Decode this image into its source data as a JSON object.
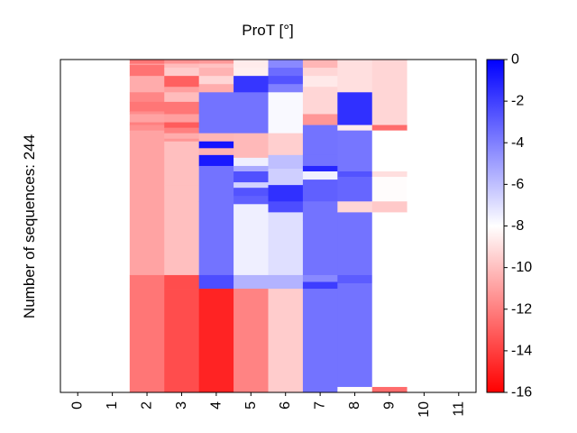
{
  "chart_data": {
    "type": "heatmap",
    "title": "ProT [°]",
    "ylabel": "Number of sequences: 244",
    "xlabel": "",
    "x_ticks": [
      "0",
      "1",
      "2",
      "3",
      "4",
      "5",
      "6",
      "7",
      "8",
      "9",
      "10",
      "11"
    ],
    "n_sequences": 244,
    "colorbar": {
      "min": -16,
      "max": 0,
      "ticks": [
        "0",
        "-2",
        "-4",
        "-6",
        "-8",
        "-10",
        "-12",
        "-14",
        "-16"
      ],
      "colormap": "bwr_r",
      "colors": {
        "low": "#ff0000",
        "mid": "#ffffff",
        "high": "#0000ff"
      }
    },
    "columns": [
      {
        "x": 2,
        "segments": [
          [
            0,
            3,
            -12.3
          ],
          [
            3,
            4,
            -11.2
          ],
          [
            4,
            12,
            -12.4
          ],
          [
            12,
            24,
            -10.6
          ],
          [
            24,
            31,
            -11.8
          ],
          [
            31,
            38,
            -12.3
          ],
          [
            38,
            40,
            -11.6
          ],
          [
            40,
            46,
            -10.9
          ],
          [
            46,
            48,
            -12.0
          ],
          [
            48,
            52,
            -11.5
          ],
          [
            52,
            54,
            -10.9
          ],
          [
            54,
            158,
            -10.9
          ],
          [
            158,
            168,
            -12.3
          ],
          [
            168,
            244,
            -12.3
          ]
        ]
      },
      {
        "x": 3,
        "segments": [
          [
            0,
            3,
            -11.4
          ],
          [
            3,
            6,
            -10.1
          ],
          [
            6,
            12,
            -9.6
          ],
          [
            12,
            20,
            -13.0
          ],
          [
            20,
            24,
            -11.0
          ],
          [
            24,
            31,
            -10.1
          ],
          [
            31,
            38,
            -12.3
          ],
          [
            38,
            40,
            -12.3
          ],
          [
            40,
            46,
            -11.0
          ],
          [
            46,
            50,
            -13.1
          ],
          [
            50,
            54,
            -12.0
          ],
          [
            54,
            58,
            -10.6
          ],
          [
            58,
            60,
            -11.3
          ],
          [
            60,
            92,
            -10.0
          ],
          [
            92,
            158,
            -10.0
          ],
          [
            158,
            168,
            -13.6
          ],
          [
            168,
            244,
            -13.6
          ]
        ]
      },
      {
        "x": 4,
        "segments": [
          [
            0,
            3,
            -11.2
          ],
          [
            3,
            6,
            -9.9
          ],
          [
            6,
            12,
            -10.4
          ],
          [
            12,
            18,
            -9.3
          ],
          [
            18,
            24,
            -10.6
          ],
          [
            24,
            54,
            -3.6
          ],
          [
            54,
            56,
            -10.3
          ],
          [
            56,
            60,
            -10.3
          ],
          [
            60,
            65,
            -0.6
          ],
          [
            65,
            70,
            -10.4
          ],
          [
            70,
            78,
            -0.8
          ],
          [
            78,
            104,
            -3.6
          ],
          [
            104,
            158,
            -3.6
          ],
          [
            158,
            168,
            -2.4
          ],
          [
            168,
            244,
            -14.9
          ]
        ]
      },
      {
        "x": 5,
        "segments": [
          [
            0,
            6,
            -8.6
          ],
          [
            6,
            12,
            -8.5
          ],
          [
            12,
            24,
            -1.7
          ],
          [
            24,
            54,
            -3.6
          ],
          [
            54,
            72,
            -10.2
          ],
          [
            72,
            78,
            -7.5
          ],
          [
            78,
            82,
            -5.3
          ],
          [
            82,
            90,
            -2.5
          ],
          [
            90,
            94,
            -6.6
          ],
          [
            94,
            100,
            -2.6
          ],
          [
            100,
            106,
            -3.0
          ],
          [
            106,
            158,
            -7.5
          ],
          [
            158,
            168,
            -5.6
          ],
          [
            168,
            244,
            -11.9
          ]
        ]
      },
      {
        "x": 6,
        "segments": [
          [
            0,
            6,
            -4.3
          ],
          [
            6,
            12,
            -3.4
          ],
          [
            12,
            18,
            -2.6
          ],
          [
            18,
            24,
            -4.0
          ],
          [
            24,
            54,
            -7.8
          ],
          [
            54,
            70,
            -9.5
          ],
          [
            70,
            80,
            -6.0
          ],
          [
            80,
            92,
            -6.5
          ],
          [
            92,
            104,
            -1.5
          ],
          [
            104,
            112,
            -2.4
          ],
          [
            112,
            158,
            -7.0
          ],
          [
            158,
            168,
            -5.6
          ],
          [
            168,
            244,
            -9.6
          ]
        ]
      },
      {
        "x": 7,
        "segments": [
          [
            0,
            6,
            -10.3
          ],
          [
            6,
            12,
            -9.3
          ],
          [
            12,
            20,
            -8.7
          ],
          [
            20,
            30,
            -9.3
          ],
          [
            30,
            40,
            -9.3
          ],
          [
            40,
            48,
            -11.3
          ],
          [
            48,
            70,
            -3.6
          ],
          [
            70,
            78,
            -3.6
          ],
          [
            78,
            82,
            -1.2
          ],
          [
            82,
            88,
            -7.6
          ],
          [
            88,
            104,
            -3.0
          ],
          [
            104,
            118,
            -3.6
          ],
          [
            118,
            158,
            -3.6
          ],
          [
            158,
            163,
            -4.3
          ],
          [
            163,
            168,
            -1.9
          ],
          [
            168,
            244,
            -3.6
          ]
        ]
      },
      {
        "x": 8,
        "segments": [
          [
            0,
            24,
            -9.0
          ],
          [
            24,
            48,
            -1.5
          ],
          [
            48,
            52,
            -8.6
          ],
          [
            52,
            82,
            -3.7
          ],
          [
            82,
            86,
            -2.6
          ],
          [
            86,
            104,
            -3.2
          ],
          [
            104,
            112,
            -9.3
          ],
          [
            112,
            158,
            -3.6
          ],
          [
            158,
            164,
            -2.9
          ],
          [
            164,
            240,
            -3.6
          ],
          [
            240,
            244,
            -8.1
          ]
        ]
      },
      {
        "x": 9,
        "segments": [
          [
            0,
            24,
            -9.3
          ],
          [
            24,
            48,
            -9.3
          ],
          [
            48,
            52,
            -12.6
          ],
          [
            52,
            82,
            -8.0
          ],
          [
            82,
            86,
            -9.0
          ],
          [
            86,
            104,
            -8.1
          ],
          [
            104,
            112,
            -9.7
          ],
          [
            112,
            240,
            -8.0
          ],
          [
            240,
            244,
            -12.6
          ]
        ]
      }
    ]
  }
}
